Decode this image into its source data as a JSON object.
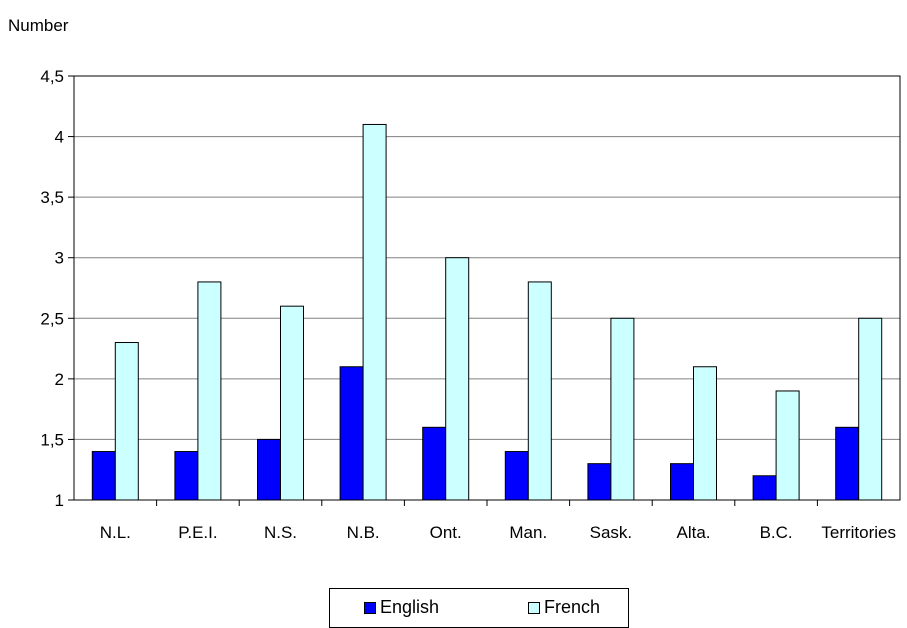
{
  "chart_data": {
    "type": "bar",
    "ylabel": "Number",
    "xlabel": "",
    "title": "",
    "categories": [
      "N.L.",
      "P.E.I.",
      "N.S.",
      "N.B.",
      "Ont.",
      "Man.",
      "Sask.",
      "Alta.",
      "B.C.",
      "Territories"
    ],
    "series": [
      {
        "name": "English",
        "color": "#0000FF",
        "values": [
          1.4,
          1.4,
          1.5,
          2.1,
          1.6,
          1.4,
          1.3,
          1.3,
          1.2,
          1.6
        ]
      },
      {
        "name": "French",
        "color": "#CCFFFF",
        "values": [
          2.3,
          2.8,
          2.6,
          4.1,
          3.0,
          2.8,
          2.5,
          2.1,
          1.9,
          2.5
        ]
      }
    ],
    "ylim": [
      1,
      4.5
    ],
    "yticks": [
      "1",
      "1,5",
      "2",
      "2,5",
      "3",
      "3,5",
      "4",
      "4,5"
    ],
    "grid": true,
    "legend_position": "bottom"
  }
}
